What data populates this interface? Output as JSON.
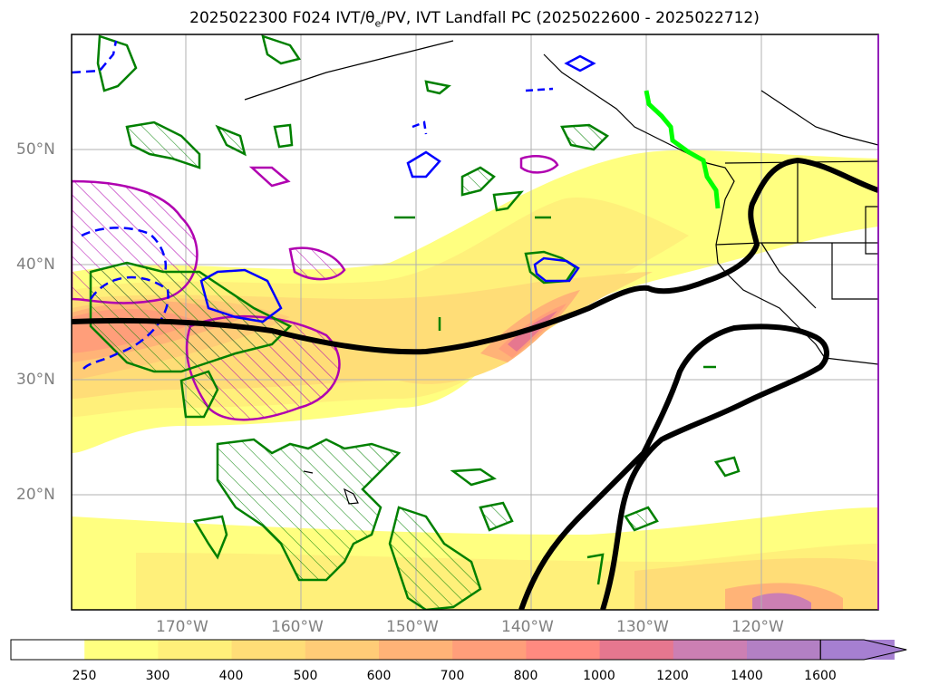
{
  "title": {
    "prefix": "2025022300 F024 IVT/",
    "theta": "θ",
    "sub": "e",
    "suffix": "/PV, IVT Landfall PC (2025022600 - 2025022712)"
  },
  "map": {
    "lat_labels": [
      "50°N",
      "40°N",
      "30°N",
      "20°N"
    ],
    "lon_labels": [
      "170°W",
      "160°W",
      "150°W",
      "140°W",
      "130°W",
      "120°W"
    ],
    "extent": {
      "lon_min": -180,
      "lon_max": -110,
      "lat_min": 10,
      "lat_max": 60
    }
  },
  "colorbar": {
    "ticks": [
      "250",
      "300",
      "400",
      "500",
      "600",
      "700",
      "800",
      "1000",
      "1200",
      "1400",
      "1600"
    ],
    "colors": [
      "#ffffff",
      "#ffff80",
      "#fff07a",
      "#ffdd77",
      "#ffcc77",
      "#ffb377",
      "#ff9e7a",
      "#ff8a80",
      "#e6778f",
      "#cc7fb3",
      "#b380c4",
      "#a67fd1"
    ]
  }
}
